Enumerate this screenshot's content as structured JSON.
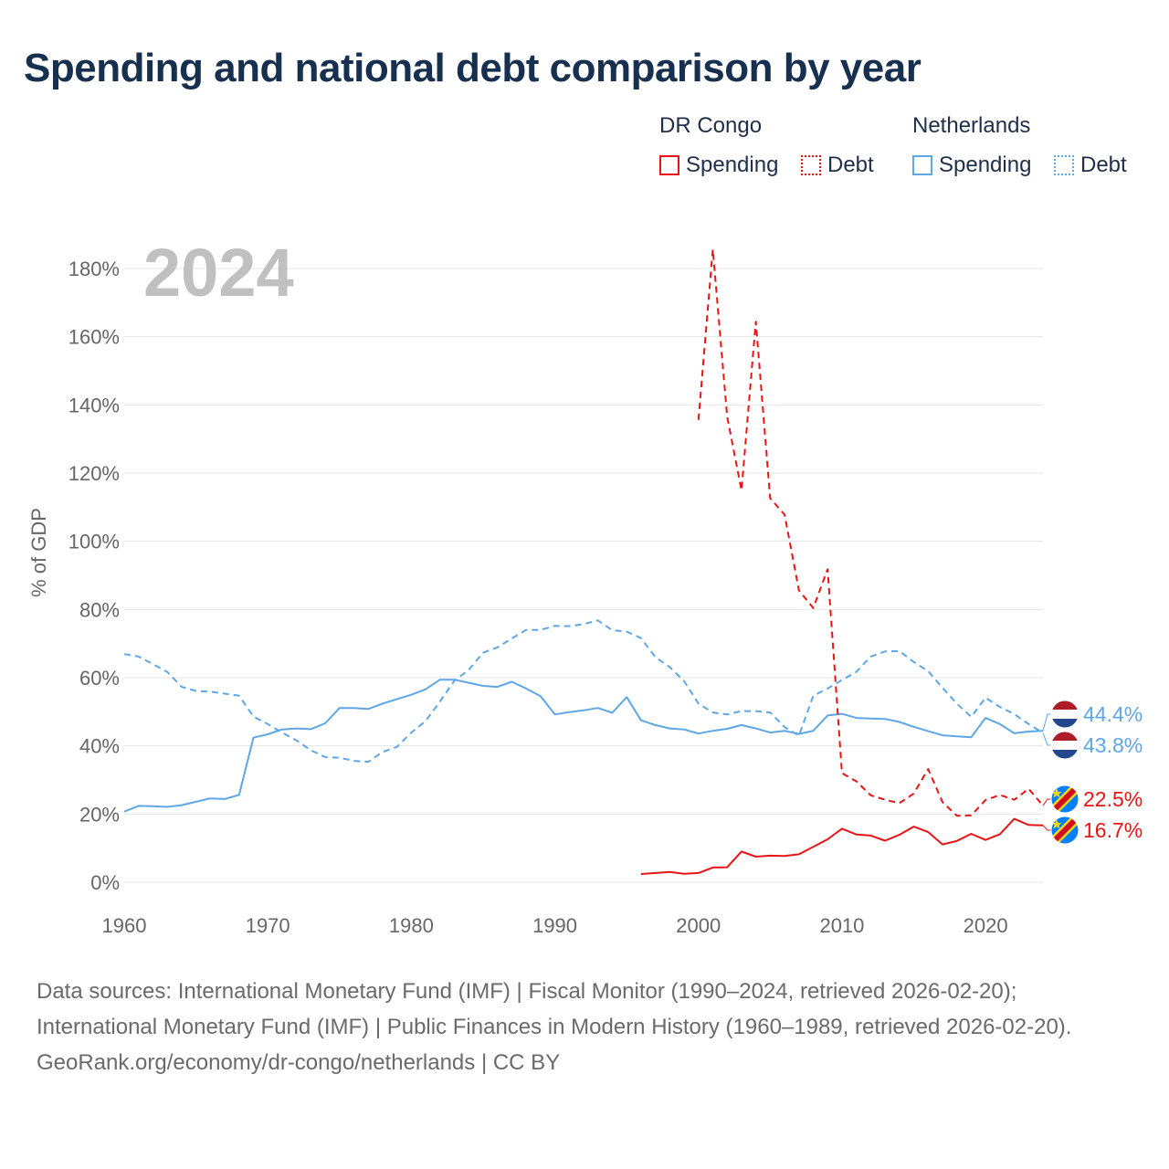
{
  "title": "Spending and national debt comparison by year",
  "legend": {
    "groups": [
      {
        "country": "DR Congo",
        "spending_label": "Spending",
        "debt_label": "Debt"
      },
      {
        "country": "Netherlands",
        "spending_label": "Spending",
        "debt_label": "Debt"
      }
    ]
  },
  "colors": {
    "dr_congo": "#e81414",
    "netherlands": "#5ea6e6",
    "grid": "#e4e4e4",
    "axis_text": "#666666",
    "year_watermark": "#c0c0c0"
  },
  "chart_data": {
    "type": "line",
    "title": "Spending and national debt comparison by year",
    "ylabel": "% of GDP",
    "xlabel": "",
    "xlim": [
      1960,
      2024
    ],
    "ylim": [
      0,
      180
    ],
    "x_ticks": [
      1960,
      1970,
      1980,
      1990,
      2000,
      2010,
      2020
    ],
    "y_ticks": [
      0,
      20,
      40,
      60,
      80,
      100,
      120,
      140,
      160,
      180
    ],
    "y_tick_suffix": "%",
    "grid": true,
    "current_year": "2024",
    "series": [
      {
        "name": "Netherlands Spending",
        "country": "Netherlands",
        "metric": "Spending",
        "style": "solid",
        "points": [
          [
            1960,
            20.7
          ],
          [
            1961,
            22.4
          ],
          [
            1962,
            22.3
          ],
          [
            1963,
            22.1
          ],
          [
            1964,
            22.6
          ],
          [
            1965,
            23.6
          ],
          [
            1966,
            24.6
          ],
          [
            1967,
            24.4
          ],
          [
            1968,
            25.6
          ],
          [
            1969,
            42.4
          ],
          [
            1970,
            43.4
          ],
          [
            1971,
            44.8
          ],
          [
            1972,
            45.1
          ],
          [
            1973,
            44.9
          ],
          [
            1974,
            46.6
          ],
          [
            1975,
            51.1
          ],
          [
            1976,
            51.1
          ],
          [
            1977,
            50.8
          ],
          [
            1978,
            52.4
          ],
          [
            1979,
            53.7
          ],
          [
            1980,
            55.0
          ],
          [
            1981,
            56.6
          ],
          [
            1982,
            59.4
          ],
          [
            1983,
            59.4
          ],
          [
            1984,
            58.5
          ],
          [
            1985,
            57.6
          ],
          [
            1986,
            57.3
          ],
          [
            1987,
            58.8
          ],
          [
            1988,
            56.8
          ],
          [
            1989,
            54.6
          ],
          [
            1990,
            49.2
          ],
          [
            1991,
            49.9
          ],
          [
            1992,
            50.4
          ],
          [
            1993,
            51.1
          ],
          [
            1994,
            49.7
          ],
          [
            1995,
            54.3
          ],
          [
            1996,
            47.5
          ],
          [
            1997,
            46.1
          ],
          [
            1998,
            45.1
          ],
          [
            1999,
            44.8
          ],
          [
            2000,
            43.6
          ],
          [
            2001,
            44.4
          ],
          [
            2002,
            45.0
          ],
          [
            2003,
            46.1
          ],
          [
            2004,
            45.1
          ],
          [
            2005,
            43.9
          ],
          [
            2006,
            44.4
          ],
          [
            2007,
            43.5
          ],
          [
            2008,
            44.4
          ],
          [
            2009,
            48.9
          ],
          [
            2010,
            49.4
          ],
          [
            2011,
            48.2
          ],
          [
            2012,
            48.0
          ],
          [
            2013,
            47.9
          ],
          [
            2014,
            47.0
          ],
          [
            2015,
            45.6
          ],
          [
            2016,
            44.3
          ],
          [
            2017,
            43.1
          ],
          [
            2018,
            42.8
          ],
          [
            2019,
            42.5
          ],
          [
            2020,
            48.2
          ],
          [
            2021,
            46.4
          ],
          [
            2022,
            43.7
          ],
          [
            2023,
            44.2
          ],
          [
            2024,
            44.4
          ]
        ]
      },
      {
        "name": "Netherlands Debt",
        "country": "Netherlands",
        "metric": "Debt",
        "style": "dashed",
        "points": [
          [
            1960,
            66.9
          ],
          [
            1961,
            66.2
          ],
          [
            1962,
            64.0
          ],
          [
            1963,
            61.7
          ],
          [
            1964,
            57.3
          ],
          [
            1965,
            56.1
          ],
          [
            1966,
            55.9
          ],
          [
            1967,
            55.3
          ],
          [
            1968,
            54.7
          ],
          [
            1969,
            48.6
          ],
          [
            1970,
            46.4
          ],
          [
            1971,
            43.9
          ],
          [
            1972,
            41.6
          ],
          [
            1973,
            38.7
          ],
          [
            1974,
            36.7
          ],
          [
            1975,
            36.5
          ],
          [
            1976,
            35.6
          ],
          [
            1977,
            35.3
          ],
          [
            1978,
            38.2
          ],
          [
            1979,
            39.7
          ],
          [
            1980,
            43.9
          ],
          [
            1981,
            47.3
          ],
          [
            1982,
            53.0
          ],
          [
            1983,
            59.1
          ],
          [
            1984,
            62.3
          ],
          [
            1985,
            67.3
          ],
          [
            1986,
            68.9
          ],
          [
            1987,
            71.5
          ],
          [
            1988,
            74.0
          ],
          [
            1989,
            74.0
          ],
          [
            1990,
            75.2
          ],
          [
            1991,
            75.1
          ],
          [
            1992,
            75.7
          ],
          [
            1993,
            76.8
          ],
          [
            1994,
            73.9
          ],
          [
            1995,
            73.5
          ],
          [
            1996,
            71.6
          ],
          [
            1997,
            66.0
          ],
          [
            1998,
            63.1
          ],
          [
            1999,
            59.0
          ],
          [
            2000,
            52.4
          ],
          [
            2001,
            49.8
          ],
          [
            2002,
            49.2
          ],
          [
            2003,
            50.2
          ],
          [
            2004,
            50.2
          ],
          [
            2005,
            49.8
          ],
          [
            2006,
            45.5
          ],
          [
            2007,
            43.0
          ],
          [
            2008,
            54.7
          ],
          [
            2009,
            56.8
          ],
          [
            2010,
            59.3
          ],
          [
            2011,
            61.7
          ],
          [
            2012,
            66.2
          ],
          [
            2013,
            67.7
          ],
          [
            2014,
            67.8
          ],
          [
            2015,
            64.6
          ],
          [
            2016,
            61.9
          ],
          [
            2017,
            57.0
          ],
          [
            2018,
            52.4
          ],
          [
            2019,
            48.5
          ],
          [
            2020,
            54.1
          ],
          [
            2021,
            51.4
          ],
          [
            2022,
            49.3
          ],
          [
            2023,
            46.4
          ],
          [
            2024,
            43.8
          ]
        ]
      },
      {
        "name": "DR Congo Spending",
        "country": "DR Congo",
        "metric": "Spending",
        "style": "solid",
        "points": [
          [
            1996,
            2.4
          ],
          [
            1997,
            2.7
          ],
          [
            1998,
            3.0
          ],
          [
            1999,
            2.5
          ],
          [
            2000,
            2.7
          ],
          [
            2001,
            4.3
          ],
          [
            2002,
            4.4
          ],
          [
            2003,
            9.0
          ],
          [
            2004,
            7.5
          ],
          [
            2005,
            7.8
          ],
          [
            2006,
            7.7
          ],
          [
            2007,
            8.2
          ],
          [
            2008,
            10.4
          ],
          [
            2009,
            12.6
          ],
          [
            2010,
            15.7
          ],
          [
            2011,
            14.0
          ],
          [
            2012,
            13.7
          ],
          [
            2013,
            12.2
          ],
          [
            2014,
            13.9
          ],
          [
            2015,
            16.3
          ],
          [
            2016,
            14.7
          ],
          [
            2017,
            11.1
          ],
          [
            2018,
            12.1
          ],
          [
            2019,
            14.2
          ],
          [
            2020,
            12.4
          ],
          [
            2021,
            14.1
          ],
          [
            2022,
            18.6
          ],
          [
            2023,
            16.8
          ],
          [
            2024,
            16.7
          ]
        ]
      },
      {
        "name": "DR Congo Debt",
        "country": "DR Congo",
        "metric": "Debt",
        "style": "dashed",
        "points": [
          [
            2000,
            135.6
          ],
          [
            2001,
            185.6
          ],
          [
            2002,
            136.6
          ],
          [
            2003,
            114.9
          ],
          [
            2004,
            164.4
          ],
          [
            2005,
            112.6
          ],
          [
            2006,
            107.8
          ],
          [
            2007,
            85.6
          ],
          [
            2008,
            80.4
          ],
          [
            2009,
            91.8
          ],
          [
            2010,
            32.0
          ],
          [
            2011,
            29.6
          ],
          [
            2012,
            25.5
          ],
          [
            2013,
            24.2
          ],
          [
            2014,
            23.2
          ],
          [
            2015,
            26.0
          ],
          [
            2016,
            33.2
          ],
          [
            2017,
            23.5
          ],
          [
            2018,
            19.5
          ],
          [
            2019,
            19.6
          ],
          [
            2020,
            24.1
          ],
          [
            2021,
            25.6
          ],
          [
            2022,
            24.2
          ],
          [
            2023,
            27.4
          ],
          [
            2024,
            22.5
          ]
        ]
      }
    ],
    "end_labels": [
      {
        "text": "44.4%",
        "value": 44.4,
        "country": "Netherlands",
        "flag": "netherlands-flag-icon"
      },
      {
        "text": "43.8%",
        "value": 43.8,
        "country": "Netherlands",
        "flag": "netherlands-flag-icon"
      },
      {
        "text": "22.5%",
        "value": 22.5,
        "country": "DR Congo",
        "flag": "dr-congo-flag-icon"
      },
      {
        "text": "16.7%",
        "value": 16.7,
        "country": "DR Congo",
        "flag": "dr-congo-flag-icon"
      }
    ]
  },
  "footer": {
    "sources": "Data sources: International Monetary Fund (IMF) | Fiscal Monitor (1990–2024, retrieved 2026-02-20); International Monetary Fund (IMF) | Public Finances in Modern History (1960–1989, retrieved 2026-02-20).",
    "attribution": "GeoRank.org/economy/dr-congo/netherlands | CC BY"
  }
}
